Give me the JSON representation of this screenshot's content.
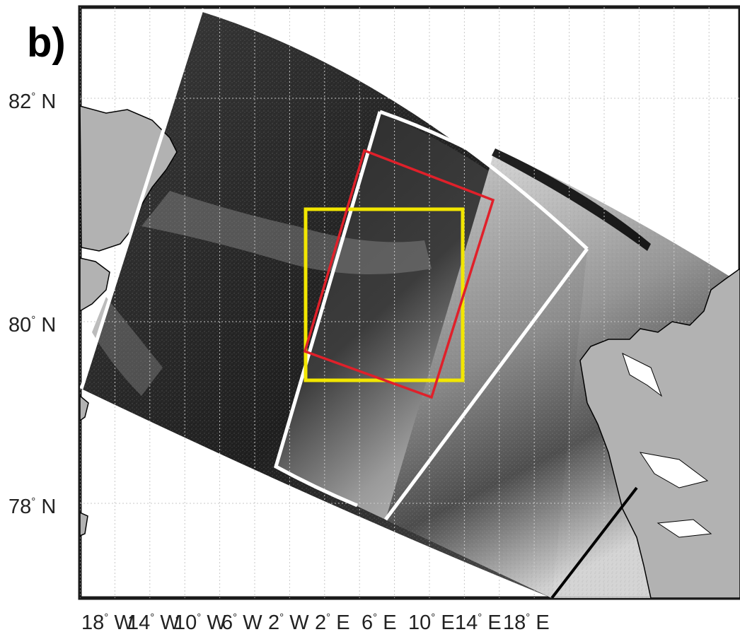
{
  "panel_label": "b)",
  "latitude_labels": [
    {
      "value": 82,
      "deg": "°",
      "hemi": "N"
    },
    {
      "value": 80,
      "deg": "°",
      "hemi": "N"
    },
    {
      "value": 78,
      "deg": "°",
      "hemi": "N"
    }
  ],
  "longitude_labels": [
    {
      "value": 18,
      "deg": "°",
      "hemi": "W"
    },
    {
      "value": 14,
      "deg": "°",
      "hemi": "W"
    },
    {
      "value": 10,
      "deg": "°",
      "hemi": "W"
    },
    {
      "value": 6,
      "deg": "°",
      "hemi": "W"
    },
    {
      "value": 2,
      "deg": "°",
      "hemi": "W"
    },
    {
      "value": 2,
      "deg": "°",
      "hemi": "E"
    },
    {
      "value": 6,
      "deg": "°",
      "hemi": "E"
    },
    {
      "value": 10,
      "deg": "°",
      "hemi": "E"
    },
    {
      "value": 14,
      "deg": "°",
      "hemi": "E"
    },
    {
      "value": 18,
      "deg": "°",
      "hemi": "E"
    }
  ],
  "colors": {
    "land": "#b2b2b2",
    "frame": "#1a1a1a",
    "yellow_box": "#f2e600",
    "red_box": "#e0202a",
    "swath_outline": "#ffffff",
    "gridline": "#c8c8c8"
  }
}
